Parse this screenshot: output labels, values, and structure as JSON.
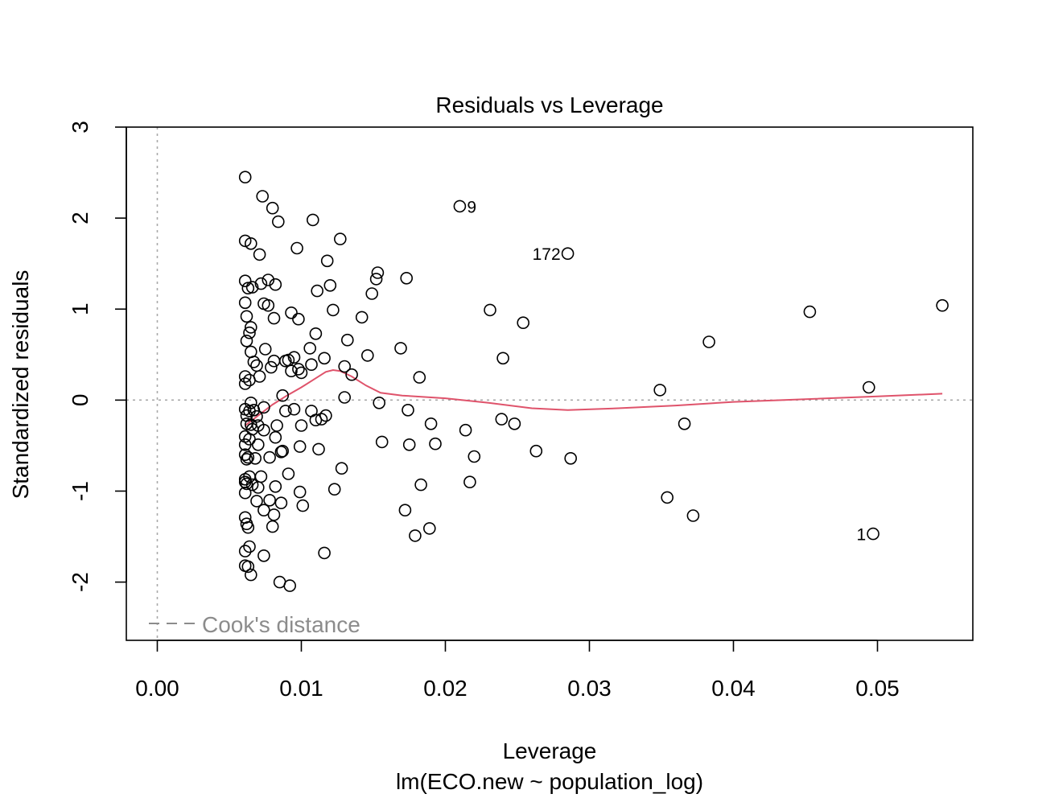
{
  "chart_data": {
    "type": "scatter",
    "title": "Residuals vs Leverage",
    "xlabel": "Leverage",
    "subtitle": "lm(ECO.new ~ population_log)",
    "ylabel": "Standardized residuals",
    "xlim": [
      -0.00215,
      0.05662
    ],
    "ylim": [
      -2.64,
      3.0
    ],
    "x_ticks": [
      0.0,
      0.01,
      0.02,
      0.03,
      0.04,
      0.05
    ],
    "x_tick_labels": [
      "0.00",
      "0.01",
      "0.02",
      "0.03",
      "0.04",
      "0.05"
    ],
    "y_ticks": [
      -2,
      -1,
      0,
      1,
      2,
      3
    ],
    "y_tick_labels": [
      "-2",
      "-1",
      "0",
      "1",
      "2",
      "3"
    ],
    "legend": {
      "label": "Cook's distance",
      "position": "bottom-left",
      "line_style": "dashed"
    },
    "reference_lines": [
      {
        "axis": "y",
        "value": 0,
        "style": "dotted"
      },
      {
        "axis": "x",
        "value": 0,
        "style": "dotted"
      }
    ],
    "colors": {
      "points": "#000000",
      "smooth": "#DF536B",
      "reference": "#A9A9A9",
      "legend_text": "#8C8C8C"
    },
    "points": [
      [
        0.0061,
        2.45
      ],
      [
        0.0073,
        2.24
      ],
      [
        0.008,
        2.11
      ],
      [
        0.0084,
        1.96
      ],
      [
        0.0108,
        1.98
      ],
      [
        0.0127,
        1.77
      ],
      [
        0.0061,
        1.75
      ],
      [
        0.0065,
        1.72
      ],
      [
        0.0071,
        1.6
      ],
      [
        0.0097,
        1.67
      ],
      [
        0.0118,
        1.53
      ],
      [
        0.0061,
        1.31
      ],
      [
        0.0063,
        1.23
      ],
      [
        0.0066,
        1.24
      ],
      [
        0.0072,
        1.28
      ],
      [
        0.0077,
        1.32
      ],
      [
        0.0082,
        1.27
      ],
      [
        0.0111,
        1.2
      ],
      [
        0.012,
        1.26
      ],
      [
        0.0153,
        1.4
      ],
      [
        0.0152,
        1.33
      ],
      [
        0.0149,
        1.17
      ],
      [
        0.0173,
        1.34
      ],
      [
        0.0061,
        1.07
      ],
      [
        0.0074,
        1.06
      ],
      [
        0.0077,
        1.04
      ],
      [
        0.0093,
        0.96
      ],
      [
        0.0098,
        0.89
      ],
      [
        0.0081,
        0.9
      ],
      [
        0.0122,
        0.99
      ],
      [
        0.0062,
        0.92
      ],
      [
        0.0065,
        0.8
      ],
      [
        0.0064,
        0.74
      ],
      [
        0.011,
        0.73
      ],
      [
        0.0142,
        0.91
      ],
      [
        0.0062,
        0.65
      ],
      [
        0.0132,
        0.66
      ],
      [
        0.0065,
        0.53
      ],
      [
        0.0075,
        0.56
      ],
      [
        0.0106,
        0.57
      ],
      [
        0.0116,
        0.46
      ],
      [
        0.0146,
        0.49
      ],
      [
        0.0169,
        0.57
      ],
      [
        0.0067,
        0.42
      ],
      [
        0.0069,
        0.38
      ],
      [
        0.0079,
        0.36
      ],
      [
        0.0081,
        0.43
      ],
      [
        0.0089,
        0.43
      ],
      [
        0.0091,
        0.44
      ],
      [
        0.0095,
        0.47
      ],
      [
        0.0098,
        0.34
      ],
      [
        0.01,
        0.3
      ],
      [
        0.0093,
        0.32
      ],
      [
        0.0107,
        0.39
      ],
      [
        0.013,
        0.37
      ],
      [
        0.0135,
        0.28
      ],
      [
        0.0061,
        0.26
      ],
      [
        0.0064,
        0.22
      ],
      [
        0.0061,
        0.18
      ],
      [
        0.0071,
        0.26
      ],
      [
        0.0182,
        0.25
      ],
      [
        0.0087,
        0.05
      ],
      [
        0.013,
        0.03
      ],
      [
        0.0154,
        -0.03
      ],
      [
        0.0065,
        -0.03
      ],
      [
        0.0061,
        -0.1
      ],
      [
        0.0064,
        -0.12
      ],
      [
        0.0067,
        -0.11
      ],
      [
        0.0062,
        -0.17
      ],
      [
        0.0069,
        -0.18
      ],
      [
        0.0074,
        -0.08
      ],
      [
        0.0089,
        -0.12
      ],
      [
        0.0095,
        -0.1
      ],
      [
        0.0107,
        -0.12
      ],
      [
        0.011,
        -0.22
      ],
      [
        0.0114,
        -0.21
      ],
      [
        0.0117,
        -0.17
      ],
      [
        0.0174,
        -0.11
      ],
      [
        0.0062,
        -0.26
      ],
      [
        0.0065,
        -0.27
      ],
      [
        0.0066,
        -0.32
      ],
      [
        0.007,
        -0.28
      ],
      [
        0.0074,
        -0.33
      ],
      [
        0.0083,
        -0.28
      ],
      [
        0.01,
        -0.28
      ],
      [
        0.0061,
        -0.4
      ],
      [
        0.0064,
        -0.43
      ],
      [
        0.0082,
        -0.41
      ],
      [
        0.0061,
        -0.49
      ],
      [
        0.007,
        -0.49
      ],
      [
        0.0099,
        -0.51
      ],
      [
        0.0112,
        -0.54
      ],
      [
        0.0156,
        -0.46
      ],
      [
        0.0175,
        -0.49
      ],
      [
        0.019,
        -0.26
      ],
      [
        0.0193,
        -0.48
      ],
      [
        0.0214,
        -0.33
      ],
      [
        0.0239,
        -0.21
      ],
      [
        0.0248,
        -0.26
      ],
      [
        0.0061,
        -0.6
      ],
      [
        0.0063,
        -0.63
      ],
      [
        0.0062,
        -0.65
      ],
      [
        0.0068,
        -0.64
      ],
      [
        0.0078,
        -0.63
      ],
      [
        0.0086,
        -0.57
      ],
      [
        0.0087,
        -0.56
      ],
      [
        0.022,
        -0.62
      ],
      [
        0.0263,
        -0.56
      ],
      [
        0.0287,
        -0.64
      ],
      [
        0.0061,
        -0.9
      ],
      [
        0.0062,
        -0.92
      ],
      [
        0.0064,
        -0.84
      ],
      [
        0.0066,
        -0.93
      ],
      [
        0.0061,
        -0.87
      ],
      [
        0.007,
        -0.96
      ],
      [
        0.0072,
        -0.84
      ],
      [
        0.0082,
        -0.95
      ],
      [
        0.0091,
        -0.81
      ],
      [
        0.0099,
        -1.01
      ],
      [
        0.0123,
        -0.98
      ],
      [
        0.0128,
        -0.75
      ],
      [
        0.0183,
        -0.93
      ],
      [
        0.0217,
        -0.9
      ],
      [
        0.0061,
        -1.02
      ],
      [
        0.0069,
        -1.11
      ],
      [
        0.0074,
        -1.21
      ],
      [
        0.0078,
        -1.1
      ],
      [
        0.0081,
        -1.26
      ],
      [
        0.0086,
        -1.13
      ],
      [
        0.0101,
        -1.16
      ],
      [
        0.0061,
        -1.29
      ],
      [
        0.0062,
        -1.36
      ],
      [
        0.0063,
        -1.4
      ],
      [
        0.008,
        -1.39
      ],
      [
        0.0172,
        -1.21
      ],
      [
        0.0179,
        -1.49
      ],
      [
        0.0189,
        -1.41
      ],
      [
        0.0061,
        -1.66
      ],
      [
        0.0064,
        -1.61
      ],
      [
        0.0074,
        -1.71
      ],
      [
        0.0116,
        -1.68
      ],
      [
        0.0061,
        -1.82
      ],
      [
        0.0063,
        -1.83
      ],
      [
        0.0065,
        -1.92
      ],
      [
        0.0085,
        -2.0
      ],
      [
        0.0092,
        -2.04
      ],
      [
        0.021,
        2.13
      ],
      [
        0.0285,
        1.61
      ],
      [
        0.0231,
        0.99
      ],
      [
        0.0254,
        0.85
      ],
      [
        0.024,
        0.46
      ],
      [
        0.0349,
        0.11
      ],
      [
        0.0383,
        0.64
      ],
      [
        0.0453,
        0.97
      ],
      [
        0.0545,
        1.04
      ],
      [
        0.0494,
        0.14
      ],
      [
        0.0366,
        -0.26
      ],
      [
        0.0354,
        -1.07
      ],
      [
        0.0372,
        -1.27
      ],
      [
        0.0497,
        -1.47
      ]
    ],
    "point_labels": [
      {
        "label": "9",
        "x": 0.021,
        "y": 2.13,
        "side": "right"
      },
      {
        "label": "172",
        "x": 0.0285,
        "y": 1.61,
        "side": "left"
      },
      {
        "label": "1",
        "x": 0.0497,
        "y": -1.47,
        "side": "left"
      }
    ],
    "smooth_line": [
      [
        0.0061,
        -0.28
      ],
      [
        0.007,
        -0.17
      ],
      [
        0.008,
        -0.05
      ],
      [
        0.009,
        0.05
      ],
      [
        0.01,
        0.14
      ],
      [
        0.011,
        0.24
      ],
      [
        0.0117,
        0.31
      ],
      [
        0.0122,
        0.33
      ],
      [
        0.0127,
        0.32
      ],
      [
        0.0135,
        0.26
      ],
      [
        0.0145,
        0.16
      ],
      [
        0.0155,
        0.08
      ],
      [
        0.017,
        0.05
      ],
      [
        0.02,
        0.02
      ],
      [
        0.023,
        -0.03
      ],
      [
        0.026,
        -0.09
      ],
      [
        0.0285,
        -0.11
      ],
      [
        0.032,
        -0.09
      ],
      [
        0.036,
        -0.06
      ],
      [
        0.04,
        -0.02
      ],
      [
        0.045,
        0.01
      ],
      [
        0.05,
        0.04
      ],
      [
        0.0545,
        0.07
      ]
    ]
  }
}
